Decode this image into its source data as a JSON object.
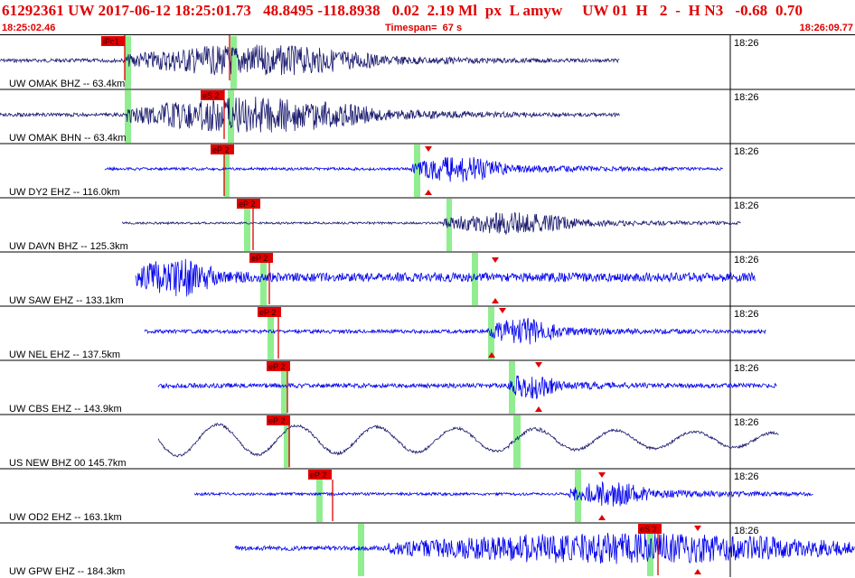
{
  "header": {
    "title": "61292361 UW 2017-06-12 18:25:01.73   48.8495 -118.8938   0.02  2.19 Ml  px  L amyw     UW 01  H   2  -  H N3   -0.68  0.70",
    "start_time": "18:25:02.46",
    "timespan": "Timespan=  67 s",
    "end_time": "18:26:09.77"
  },
  "colors": {
    "title_red": "#e00000",
    "pick_red": "#e00000",
    "trace_navy": "#1a1a6e",
    "trace_blue": "#0000ee",
    "pick_window_green": "#90ee90",
    "separator": "#000000"
  },
  "traces": [
    {
      "label": "UW OMAK BHZ -- 63.4km",
      "time_mark": "18:26",
      "pick": "iPc1",
      "color": "navy"
    },
    {
      "label": "UW OMAK BHN -- 63.4km",
      "time_mark": "18:26",
      "pick": "eS 2",
      "color": "navy"
    },
    {
      "label": "UW DY2 EHZ -- 116.0km",
      "time_mark": "18:26",
      "pick": "eP 2",
      "color": "blue"
    },
    {
      "label": "UW DAVN BHZ -- 125.3km",
      "time_mark": "18:26",
      "pick": "eP 2",
      "color": "navy"
    },
    {
      "label": "UW SAW EHZ -- 133.1km",
      "time_mark": "18:26",
      "pick": "eP 2",
      "color": "blue"
    },
    {
      "label": "UW NEL EHZ -- 137.5km",
      "time_mark": "18:26",
      "pick": "eP 2",
      "color": "blue"
    },
    {
      "label": "UW CBS EHZ -- 143.9km",
      "time_mark": "18:26",
      "pick": "eP 2",
      "color": "blue"
    },
    {
      "label": "US NEW BHZ 00 145.7km",
      "time_mark": "18:26",
      "pick": "eP 2",
      "color": "navy"
    },
    {
      "label": "UW OD2 EHZ -- 163.1km",
      "time_mark": "18:26",
      "pick": "eP 2",
      "color": "blue"
    },
    {
      "label": "UW GPW EHZ -- 184.3km",
      "time_mark": "18:26",
      "pick": "eS 2",
      "color": "blue"
    }
  ]
}
